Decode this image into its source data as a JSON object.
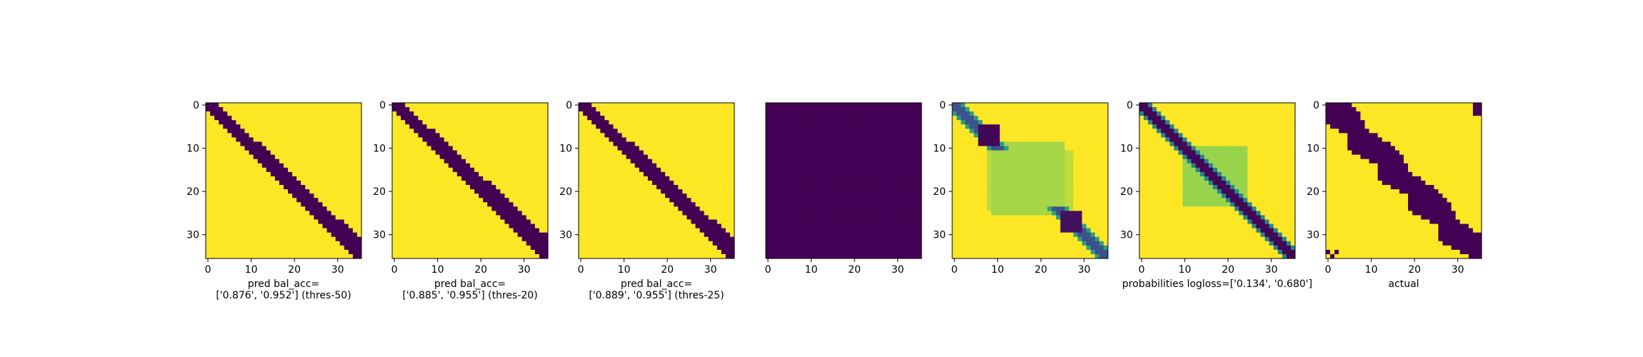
{
  "figure": {
    "colors": {
      "low": "#440154",
      "high": "#fde725",
      "mid_light": "#addc30",
      "mid": "#5ec962",
      "teal": "#21918c",
      "blue": "#3b528b",
      "frame": "#000000"
    }
  },
  "chart_data": [
    {
      "type": "heatmap",
      "name": "pred-thres-50",
      "rows": 36,
      "cols": 36,
      "pattern": "band",
      "band_width": [
        2,
        4
      ],
      "values": [
        0,
        1
      ],
      "xticks": [
        0,
        10,
        20,
        30
      ],
      "yticks": [
        0,
        10,
        20,
        30
      ],
      "caption": [
        "pred bal_acc=",
        "['0.876', '0.952'] (thres-50)"
      ]
    },
    {
      "type": "heatmap",
      "name": "pred-thres-20",
      "rows": 36,
      "cols": 36,
      "pattern": "band",
      "band_width": [
        2,
        5
      ],
      "values": [
        0,
        1
      ],
      "xticks": [
        0,
        10,
        20,
        30
      ],
      "yticks": [
        0,
        10,
        20,
        30
      ],
      "caption": [
        "pred bal_acc=",
        "['0.885', '0.955'] (thres-20)"
      ]
    },
    {
      "type": "heatmap",
      "name": "pred-thres-25",
      "rows": 36,
      "cols": 36,
      "pattern": "band",
      "band_width": [
        2,
        4
      ],
      "values": [
        0,
        1
      ],
      "xticks": [
        0,
        10,
        20,
        30
      ],
      "yticks": [
        0,
        10,
        20,
        30
      ],
      "caption": [
        "pred bal_acc=",
        "['0.889', '0.955'] (thres-25)"
      ]
    },
    {
      "type": "heatmap",
      "name": "all-low",
      "rows": 36,
      "cols": 36,
      "pattern": "uniform",
      "values": [
        0
      ],
      "xticks": [
        0,
        10,
        20,
        30
      ],
      "yticks": [],
      "caption": []
    },
    {
      "type": "heatmap",
      "name": "probabilities-class-0",
      "rows": 36,
      "cols": 36,
      "pattern": "blobs",
      "values": [
        0,
        1
      ],
      "xticks": [
        0,
        10,
        20,
        30
      ],
      "yticks": [
        0,
        10,
        20,
        30
      ],
      "caption": []
    },
    {
      "type": "heatmap",
      "name": "probabilities-class-1",
      "rows": 36,
      "cols": 36,
      "pattern": "prob-band",
      "values": [
        0,
        1
      ],
      "xticks": [
        0,
        10,
        20,
        30
      ],
      "yticks": [
        0,
        10,
        20,
        30
      ],
      "caption": [
        "probabilities logloss=['0.134', '0.680']"
      ]
    },
    {
      "type": "heatmap",
      "name": "actual",
      "rows": 36,
      "cols": 36,
      "pattern": "wide-band",
      "values": [
        0,
        1
      ],
      "xticks": [
        0,
        10,
        20,
        30
      ],
      "yticks": [
        0,
        10,
        20,
        30
      ],
      "caption": [
        "actual"
      ]
    }
  ]
}
